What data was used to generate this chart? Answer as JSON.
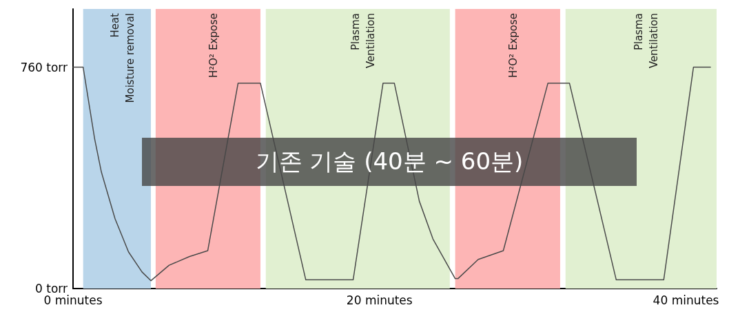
{
  "chart_data": {
    "type": "line",
    "annotations": [
      "기존 기술 (40분 ~ 60분)"
    ],
    "x": [
      0,
      0.66,
      1.41,
      1.85,
      2.74,
      3.62,
      4.5,
      5.08,
      6.27,
      7.6,
      8.79,
      10.77,
      12.23,
      15.19,
      18.28,
      20.23,
      20.97,
      22.6,
      23.49,
      24.94,
      25.12,
      26.44,
      28.08,
      30.99,
      32.4,
      35.45,
      38.55,
      40.49,
      41.6
    ],
    "values": [
      760,
      760,
      514,
      400,
      240,
      126,
      57,
      27,
      80,
      110,
      130,
      705,
      705,
      30,
      30,
      705,
      705,
      300,
      170,
      34,
      34,
      100,
      130,
      705,
      705,
      30,
      30,
      760,
      760
    ],
    "color": "#4a4a4a",
    "xlim": [
      0,
      42
    ],
    "xticks": [
      {
        "value": 0,
        "label": "0 minutes"
      },
      {
        "value": 20,
        "label": "20 minutes"
      },
      {
        "value": 40,
        "label": "40 minutes"
      }
    ],
    "ylim": [
      0,
      960
    ],
    "yticks": [
      {
        "value": 0,
        "label": "0 torr"
      },
      {
        "value": 760,
        "label": "760 torr"
      }
    ],
    "bands": [
      {
        "axis": "x",
        "from": 0.66,
        "to": 5.08,
        "label": "Heat\nMoisture removal",
        "color": "#b9d5ea"
      },
      {
        "axis": "x",
        "from": 5.39,
        "to": 12.23,
        "label": "H²O² Expose",
        "color": "#fdb5b5"
      },
      {
        "axis": "x",
        "from": 12.58,
        "to": 24.59,
        "label": "Plasma\nVentilation",
        "color": "#e1f0d1"
      },
      {
        "axis": "x",
        "from": 24.94,
        "to": 31.79,
        "label": "H²O² Expose",
        "color": "#fdb5b5"
      },
      {
        "axis": "x",
        "from": 32.14,
        "to": 42,
        "label": "Plasma\nVentilation",
        "color": "#e1f0d1"
      }
    ],
    "grid": false,
    "marker": "none",
    "line_style": "solid"
  }
}
